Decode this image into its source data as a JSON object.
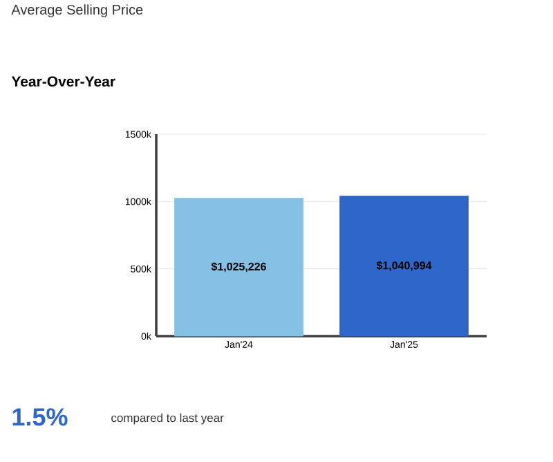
{
  "chart_data": {
    "type": "bar",
    "title": "Average Selling Price",
    "subtitle": "Year-Over-Year",
    "categories": [
      "Jan'24",
      "Jan'25"
    ],
    "values": [
      1025226,
      1040994
    ],
    "value_labels": [
      "$1,025,226",
      "$1,040,994"
    ],
    "colors": [
      "#85c1e5",
      "#2e67c9"
    ],
    "ylim": [
      0,
      1500000
    ],
    "yticks": [
      {
        "value": 0,
        "label": "0k"
      },
      {
        "value": 500000,
        "label": "500k"
      },
      {
        "value": 1000000,
        "label": "1000k"
      },
      {
        "value": 1500000,
        "label": "1500k"
      }
    ],
    "grid": "y",
    "annotations": [
      "1.5%",
      "compared to last year"
    ]
  }
}
